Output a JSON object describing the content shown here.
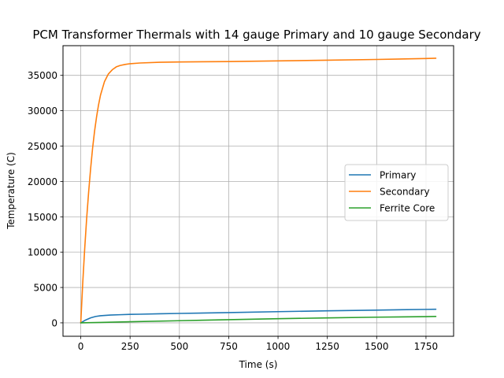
{
  "chart_data": {
    "type": "line",
    "title": "PCM Transformer Thermals with 14 gauge Primary and 10 gauge Secondary",
    "xlabel": "Time (s)",
    "ylabel": "Temperature (C)",
    "xlim": [
      -90,
      1890
    ],
    "ylim": [
      -1900,
      39200
    ],
    "xticks": [
      0,
      250,
      500,
      750,
      1000,
      1250,
      1500,
      1750
    ],
    "yticks": [
      0,
      5000,
      10000,
      15000,
      20000,
      25000,
      30000,
      35000
    ],
    "grid": true,
    "legend": {
      "location": "center-right",
      "entries": [
        "Primary",
        "Secondary",
        "Ferrite Core"
      ]
    },
    "series": [
      {
        "name": "Primary",
        "color": "#1f77b4",
        "x": [
          0,
          25,
          50,
          75,
          100,
          150,
          200,
          250,
          300,
          400,
          500,
          750,
          1000,
          1250,
          1500,
          1750,
          1800
        ],
        "y": [
          0,
          400,
          700,
          900,
          1000,
          1100,
          1150,
          1200,
          1220,
          1280,
          1330,
          1450,
          1580,
          1700,
          1800,
          1900,
          1920
        ]
      },
      {
        "name": "Secondary",
        "color": "#ff7f0e",
        "x": [
          0,
          10,
          20,
          30,
          40,
          50,
          60,
          70,
          80,
          90,
          100,
          120,
          140,
          160,
          180,
          200,
          225,
          250,
          300,
          400,
          500,
          750,
          1000,
          1250,
          1500,
          1750,
          1800
        ],
        "y": [
          0,
          5600,
          10500,
          14800,
          18500,
          21800,
          24700,
          27100,
          29100,
          30800,
          32200,
          34100,
          35200,
          35800,
          36200,
          36400,
          36550,
          36650,
          36750,
          36850,
          36900,
          36950,
          37050,
          37150,
          37250,
          37380,
          37420
        ]
      },
      {
        "name": "Ferrite Core",
        "color": "#2ca02c",
        "x": [
          0,
          50,
          100,
          250,
          500,
          750,
          1000,
          1250,
          1500,
          1750,
          1800
        ],
        "y": [
          0,
          30,
          60,
          150,
          300,
          450,
          580,
          700,
          800,
          880,
          900
        ]
      }
    ]
  }
}
